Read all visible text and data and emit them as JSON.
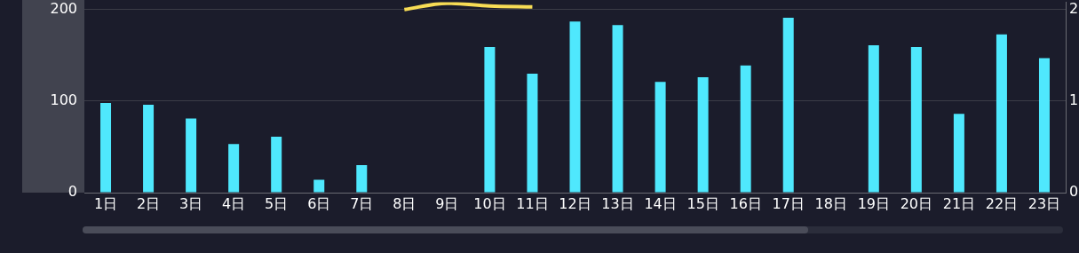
{
  "chart_data": {
    "type": "bar",
    "categories": [
      "1日",
      "2日",
      "3日",
      "4日",
      "5日",
      "6日",
      "7日",
      "8日",
      "9日",
      "10日",
      "11日",
      "12日",
      "13日",
      "14日",
      "15日",
      "16日",
      "17日",
      "18日",
      "19日",
      "20日",
      "21日",
      "22日",
      "23日"
    ],
    "series": [
      {
        "color": "#4fe8fd",
        "values": [
          98,
          96,
          81,
          53,
          61,
          14,
          30,
          null,
          null,
          159,
          130,
          187,
          183,
          121,
          126,
          139,
          191,
          null,
          161,
          159,
          86,
          173,
          147
        ]
      },
      {
        "type": "line",
        "axis": "y2",
        "color": "#f7dc55",
        "values": [
          null,
          null,
          null,
          null,
          null,
          null,
          null,
          2.0,
          2.07,
          2.04,
          2.03,
          null,
          null,
          null,
          null,
          null,
          null,
          null,
          null,
          null,
          null,
          null,
          null
        ]
      }
    ],
    "ylim": [
      0,
      208
    ],
    "yticks": [
      0,
      100,
      200
    ],
    "y2lim": [
      0,
      2.08
    ],
    "y2ticks": [
      0,
      1,
      2
    ],
    "grid": "y"
  }
}
